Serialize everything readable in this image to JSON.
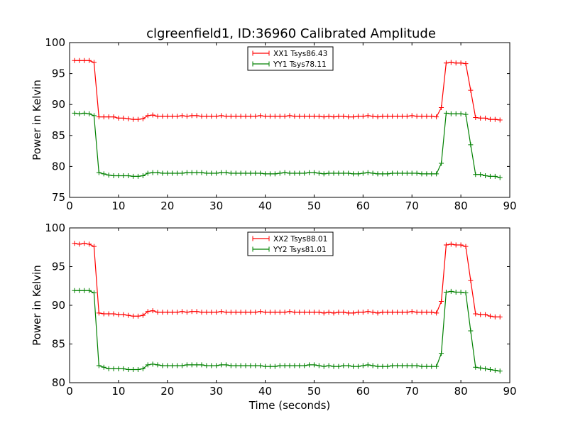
{
  "figure": {
    "title": "clgreenfield1, ID:36960 Calibrated Amplitude",
    "xlabel": "Time (seconds)"
  },
  "chart_data": [
    {
      "type": "line",
      "title": "clgreenfield1, ID:36960 Calibrated Amplitude",
      "xlabel": "",
      "ylabel": "Power in Kelvin",
      "xlim": [
        0,
        90
      ],
      "ylim": [
        75,
        100
      ],
      "xticks": [
        "0",
        "10",
        "20",
        "30",
        "40",
        "50",
        "60",
        "70",
        "80",
        "90"
      ],
      "yticks": [
        "75",
        "80",
        "85",
        "90",
        "95",
        "100"
      ],
      "grid": false,
      "legend": "top-center",
      "series": [
        {
          "name": "XX1 Tsys86.43",
          "color": "#ff0000",
          "marker": "+",
          "x": [
            1,
            2,
            3,
            4,
            5,
            6,
            7,
            8,
            9,
            10,
            11,
            12,
            13,
            14,
            15,
            16,
            17,
            18,
            19,
            20,
            21,
            22,
            23,
            24,
            25,
            26,
            27,
            28,
            29,
            30,
            31,
            32,
            33,
            34,
            35,
            36,
            37,
            38,
            39,
            40,
            41,
            42,
            43,
            44,
            45,
            46,
            47,
            48,
            49,
            50,
            51,
            52,
            53,
            54,
            55,
            56,
            57,
            58,
            59,
            60,
            61,
            62,
            63,
            64,
            65,
            66,
            67,
            68,
            69,
            70,
            71,
            72,
            73,
            74,
            75,
            76,
            77,
            78,
            79,
            80,
            81,
            82,
            83,
            84,
            85,
            86,
            87,
            88
          ],
          "values": [
            97.1,
            97.1,
            97.1,
            97.1,
            96.8,
            88.0,
            88.0,
            88.0,
            88.0,
            87.8,
            87.8,
            87.7,
            87.6,
            87.6,
            87.7,
            88.2,
            88.3,
            88.1,
            88.1,
            88.1,
            88.1,
            88.1,
            88.2,
            88.1,
            88.2,
            88.2,
            88.1,
            88.1,
            88.1,
            88.1,
            88.2,
            88.1,
            88.1,
            88.1,
            88.1,
            88.1,
            88.1,
            88.1,
            88.2,
            88.1,
            88.1,
            88.1,
            88.1,
            88.1,
            88.2,
            88.1,
            88.1,
            88.1,
            88.1,
            88.1,
            88.1,
            88.0,
            88.1,
            88.0,
            88.1,
            88.1,
            88.0,
            88.0,
            88.1,
            88.1,
            88.2,
            88.1,
            88.0,
            88.1,
            88.1,
            88.1,
            88.1,
            88.1,
            88.1,
            88.2,
            88.1,
            88.1,
            88.1,
            88.1,
            88.0,
            89.5,
            96.7,
            96.8,
            96.7,
            96.7,
            96.6,
            92.3,
            87.9,
            87.8,
            87.8,
            87.6,
            87.6,
            87.5
          ]
        },
        {
          "name": "YY1 Tsys78.11",
          "color": "#008000",
          "marker": "+",
          "x": [
            1,
            2,
            3,
            4,
            5,
            6,
            7,
            8,
            9,
            10,
            11,
            12,
            13,
            14,
            15,
            16,
            17,
            18,
            19,
            20,
            21,
            22,
            23,
            24,
            25,
            26,
            27,
            28,
            29,
            30,
            31,
            32,
            33,
            34,
            35,
            36,
            37,
            38,
            39,
            40,
            41,
            42,
            43,
            44,
            45,
            46,
            47,
            48,
            49,
            50,
            51,
            52,
            53,
            54,
            55,
            56,
            57,
            58,
            59,
            60,
            61,
            62,
            63,
            64,
            65,
            66,
            67,
            68,
            69,
            70,
            71,
            72,
            73,
            74,
            75,
            76,
            77,
            78,
            79,
            80,
            81,
            82,
            83,
            84,
            85,
            86,
            87,
            88
          ],
          "values": [
            88.6,
            88.5,
            88.6,
            88.5,
            88.2,
            79.0,
            78.8,
            78.6,
            78.5,
            78.5,
            78.5,
            78.5,
            78.4,
            78.4,
            78.5,
            78.9,
            79.0,
            79.0,
            78.9,
            78.9,
            78.9,
            78.9,
            78.9,
            79.0,
            79.0,
            79.0,
            79.0,
            78.9,
            78.9,
            78.9,
            79.0,
            79.0,
            78.9,
            78.9,
            78.9,
            78.9,
            78.9,
            78.9,
            78.9,
            78.8,
            78.8,
            78.8,
            78.9,
            79.0,
            78.9,
            78.9,
            78.9,
            78.9,
            79.0,
            79.0,
            78.9,
            78.8,
            78.9,
            78.9,
            78.9,
            78.9,
            78.9,
            78.8,
            78.8,
            78.9,
            79.0,
            78.9,
            78.8,
            78.8,
            78.8,
            78.9,
            78.9,
            78.9,
            78.9,
            78.9,
            78.9,
            78.8,
            78.8,
            78.8,
            78.8,
            80.5,
            88.6,
            88.5,
            88.5,
            88.5,
            88.4,
            83.5,
            78.7,
            78.7,
            78.5,
            78.4,
            78.4,
            78.2
          ]
        }
      ]
    },
    {
      "type": "line",
      "title": "",
      "xlabel": "Time (seconds)",
      "ylabel": "Power in Kelvin",
      "xlim": [
        0,
        90
      ],
      "ylim": [
        80,
        100
      ],
      "xticks": [
        "0",
        "10",
        "20",
        "30",
        "40",
        "50",
        "60",
        "70",
        "80",
        "90"
      ],
      "yticks": [
        "80",
        "85",
        "90",
        "95",
        "100"
      ],
      "grid": false,
      "legend": "top-center",
      "series": [
        {
          "name": "XX2 Tsys88.01",
          "color": "#ff0000",
          "marker": "+",
          "x": [
            1,
            2,
            3,
            4,
            5,
            6,
            7,
            8,
            9,
            10,
            11,
            12,
            13,
            14,
            15,
            16,
            17,
            18,
            19,
            20,
            21,
            22,
            23,
            24,
            25,
            26,
            27,
            28,
            29,
            30,
            31,
            32,
            33,
            34,
            35,
            36,
            37,
            38,
            39,
            40,
            41,
            42,
            43,
            44,
            45,
            46,
            47,
            48,
            49,
            50,
            51,
            52,
            53,
            54,
            55,
            56,
            57,
            58,
            59,
            60,
            61,
            62,
            63,
            64,
            65,
            66,
            67,
            68,
            69,
            70,
            71,
            72,
            73,
            74,
            75,
            76,
            77,
            78,
            79,
            80,
            81,
            82,
            83,
            84,
            85,
            86,
            87,
            88
          ],
          "values": [
            98.0,
            97.9,
            98.0,
            97.9,
            97.6,
            89.0,
            88.9,
            88.9,
            88.9,
            88.8,
            88.8,
            88.7,
            88.6,
            88.6,
            88.7,
            89.2,
            89.3,
            89.1,
            89.1,
            89.1,
            89.1,
            89.1,
            89.2,
            89.1,
            89.2,
            89.2,
            89.1,
            89.1,
            89.1,
            89.1,
            89.2,
            89.1,
            89.1,
            89.1,
            89.1,
            89.1,
            89.1,
            89.1,
            89.2,
            89.1,
            89.1,
            89.1,
            89.1,
            89.1,
            89.2,
            89.1,
            89.1,
            89.1,
            89.1,
            89.1,
            89.1,
            89.0,
            89.1,
            89.0,
            89.1,
            89.1,
            89.0,
            89.0,
            89.1,
            89.1,
            89.2,
            89.1,
            89.0,
            89.1,
            89.1,
            89.1,
            89.1,
            89.1,
            89.1,
            89.2,
            89.1,
            89.1,
            89.1,
            89.1,
            89.0,
            90.5,
            97.8,
            97.9,
            97.8,
            97.8,
            97.6,
            93.2,
            88.9,
            88.8,
            88.8,
            88.6,
            88.5,
            88.5
          ]
        },
        {
          "name": "YY2 Tsys81.01",
          "color": "#008000",
          "marker": "+",
          "x": [
            1,
            2,
            3,
            4,
            5,
            6,
            7,
            8,
            9,
            10,
            11,
            12,
            13,
            14,
            15,
            16,
            17,
            18,
            19,
            20,
            21,
            22,
            23,
            24,
            25,
            26,
            27,
            28,
            29,
            30,
            31,
            32,
            33,
            34,
            35,
            36,
            37,
            38,
            39,
            40,
            41,
            42,
            43,
            44,
            45,
            46,
            47,
            48,
            49,
            50,
            51,
            52,
            53,
            54,
            55,
            56,
            57,
            58,
            59,
            60,
            61,
            62,
            63,
            64,
            65,
            66,
            67,
            68,
            69,
            70,
            71,
            72,
            73,
            74,
            75,
            76,
            77,
            78,
            79,
            80,
            81,
            82,
            83,
            84,
            85,
            86,
            87,
            88
          ],
          "values": [
            91.9,
            91.9,
            91.9,
            91.9,
            91.6,
            82.2,
            82.0,
            81.8,
            81.8,
            81.8,
            81.8,
            81.7,
            81.7,
            81.7,
            81.8,
            82.3,
            82.4,
            82.3,
            82.2,
            82.2,
            82.2,
            82.2,
            82.2,
            82.3,
            82.3,
            82.3,
            82.3,
            82.2,
            82.2,
            82.2,
            82.3,
            82.3,
            82.2,
            82.2,
            82.2,
            82.2,
            82.2,
            82.2,
            82.2,
            82.1,
            82.1,
            82.1,
            82.2,
            82.2,
            82.2,
            82.2,
            82.2,
            82.2,
            82.3,
            82.3,
            82.2,
            82.1,
            82.2,
            82.1,
            82.1,
            82.2,
            82.2,
            82.1,
            82.1,
            82.2,
            82.3,
            82.2,
            82.1,
            82.1,
            82.1,
            82.2,
            82.2,
            82.2,
            82.2,
            82.2,
            82.2,
            82.1,
            82.1,
            82.1,
            82.1,
            83.8,
            91.7,
            91.8,
            91.7,
            91.7,
            91.6,
            86.7,
            82.0,
            81.9,
            81.8,
            81.7,
            81.6,
            81.5
          ]
        }
      ]
    }
  ]
}
